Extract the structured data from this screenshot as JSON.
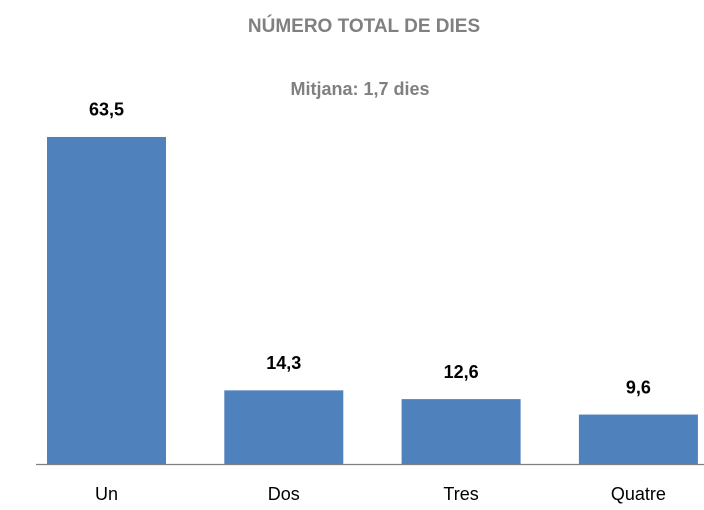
{
  "chart_data": {
    "type": "bar",
    "title": "NÚMERO TOTAL DE DIES",
    "subtitle": "Mitjana: 1,7 dies",
    "categories": [
      "Un",
      "Dos",
      "Tres",
      "Quatre"
    ],
    "values": [
      63.5,
      14.3,
      12.6,
      9.6
    ],
    "value_labels": [
      "63,5",
      "14,3",
      "12,6",
      "9,6"
    ],
    "color": "#4f81bd"
  }
}
